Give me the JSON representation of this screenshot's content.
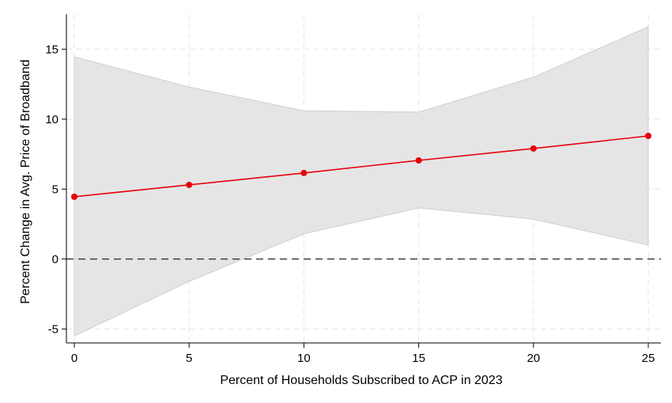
{
  "chart_data": {
    "type": "line",
    "title": "",
    "xlabel": "Percent of Households Subscribed to ACP in 2023",
    "ylabel": "Percent Change in Avg. Price of Broadband",
    "xlim": [
      0,
      25
    ],
    "ylim": [
      -6,
      17.5
    ],
    "x_ticks": [
      0,
      5,
      10,
      15,
      20,
      25
    ],
    "x_tick_labels": [
      "0",
      "5",
      "10",
      "15",
      "20",
      "25"
    ],
    "y_ticks": [
      -5,
      0,
      5,
      10,
      15
    ],
    "y_tick_labels": [
      "-5",
      "0",
      "5",
      "10",
      "15"
    ],
    "grid": true,
    "reference_line": {
      "y": 0,
      "style": "dashed"
    },
    "series": [
      {
        "x": [
          0,
          5,
          10,
          15,
          20,
          25
        ],
        "y": [
          4.45,
          5.3,
          6.15,
          7.05,
          7.9,
          8.8
        ],
        "color": "#e8000b"
      }
    ],
    "confidence_band": {
      "x": [
        0,
        5,
        10,
        15,
        20,
        25
      ],
      "lower": [
        -5.5,
        -1.6,
        1.8,
        3.65,
        2.85,
        1.0
      ],
      "upper": [
        14.45,
        12.3,
        10.6,
        10.5,
        13.0,
        16.6
      ],
      "color": "#e5e5e5"
    }
  }
}
